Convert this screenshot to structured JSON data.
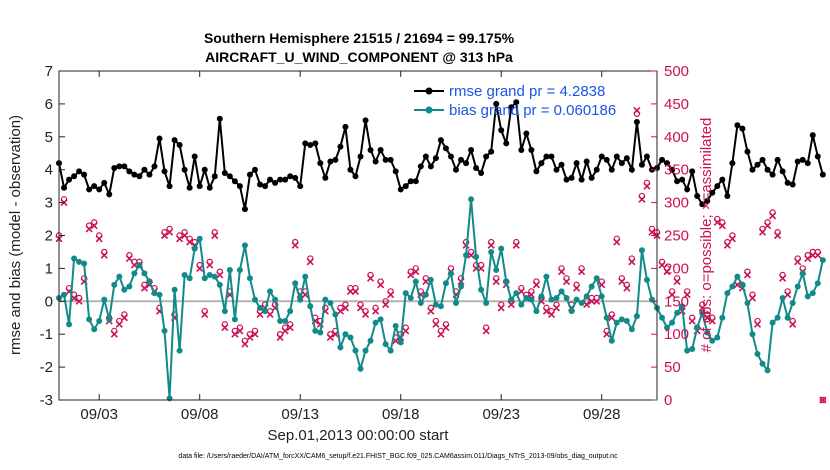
{
  "chart_data": {
    "type": "line",
    "title_line1": "Southern Hemisphere 21515 / 21694 = 99.175%",
    "title_line2": "AIRCRAFT_U_WIND_COMPONENT @ 313 hPa",
    "xlabel": "Sep.01,2013 00:00:00 start",
    "ylabel": "rmse and bias (model - observation)",
    "ylabel_right": "# of obs: o=possible; ×=assimilated",
    "ylim": [
      -3,
      7
    ],
    "ylim_right": [
      0,
      500
    ],
    "xlim": [
      1.0,
      30.75
    ],
    "x_ticks": [
      3,
      8,
      13,
      18,
      23,
      28
    ],
    "x_tick_labels": [
      "09/03",
      "09/08",
      "09/13",
      "09/18",
      "09/23",
      "09/28"
    ],
    "y_ticks": [
      -3,
      -2,
      -1,
      0,
      1,
      2,
      3,
      4,
      5,
      6,
      7
    ],
    "y_ticks_right": [
      0,
      50,
      100,
      150,
      200,
      250,
      300,
      350,
      400,
      450,
      500
    ],
    "legend": {
      "rmse_label": "rmse grand pr = 4.2838",
      "bias_label": "bias grand pr = 0.060186",
      "placement": "top-right"
    },
    "colors": {
      "rmse": "#000000",
      "bias": "#138a8a",
      "obs": "#cc1155",
      "zero": "#b4b4b4",
      "legend_text": "#1a55e6"
    },
    "x_step": 0.25,
    "x_start": 1.0,
    "rmse": [
      4.2,
      3.45,
      3.7,
      3.8,
      3.95,
      3.85,
      3.4,
      3.5,
      3.4,
      3.6,
      3.25,
      4.05,
      4.1,
      4.1,
      3.95,
      3.85,
      3.8,
      4.0,
      3.85,
      4.1,
      4.95,
      3.95,
      3.5,
      4.9,
      4.75,
      4.0,
      3.45,
      4.4,
      3.5,
      4.0,
      3.45,
      3.8,
      5.55,
      3.9,
      3.8,
      3.65,
      3.5,
      2.8,
      3.85,
      4.0,
      3.55,
      3.5,
      3.7,
      3.6,
      3.7,
      3.7,
      3.8,
      3.75,
      3.5,
      4.8,
      4.75,
      4.8,
      4.2,
      3.75,
      4.25,
      4.3,
      4.7,
      5.3,
      4.0,
      3.8,
      4.4,
      5.5,
      4.6,
      4.25,
      4.6,
      4.3,
      4.3,
      3.95,
      3.4,
      3.5,
      3.65,
      3.65,
      4.1,
      4.4,
      4.1,
      4.35,
      4.9,
      4.65,
      4.4,
      4.0,
      4.3,
      4.2,
      4.6,
      4.05,
      3.9,
      4.4,
      4.55,
      6.0,
      5.2,
      4.8,
      5.9,
      6.05,
      4.6,
      5.1,
      4.6,
      3.95,
      4.2,
      4.4,
      4.4,
      4.0,
      4.15,
      3.7,
      3.75,
      4.2,
      3.7,
      4.25,
      3.75,
      4.0,
      4.4,
      4.3,
      4.0,
      4.4,
      4.2,
      4.35,
      4.0,
      5.45,
      4.15,
      4.4,
      4.0,
      4.05,
      4.3,
      4.2,
      4.0,
      3.65,
      3.7,
      3.4,
      3.95,
      3.2,
      2.95,
      3.05,
      3.3,
      3.5,
      3.7,
      3.2,
      4.2,
      5.35,
      5.25,
      4.55,
      4.0,
      4.15,
      4.3,
      4.0,
      3.85,
      4.3,
      3.95,
      3.6,
      3.55,
      4.25,
      4.3,
      4.2,
      5.05,
      4.4,
      3.85
    ],
    "bias": [
      0.1,
      0.2,
      -0.7,
      1.3,
      1.2,
      1.15,
      -0.55,
      -0.85,
      -0.6,
      0.05,
      -0.55,
      0.5,
      0.75,
      0.35,
      0.45,
      0.85,
      1.1,
      0.85,
      0.6,
      0.25,
      0.2,
      -0.9,
      -2.95,
      0.35,
      -1.5,
      0.8,
      0.7,
      1.6,
      1.9,
      0.7,
      0.8,
      0.75,
      0.5,
      -0.3,
      0.95,
      -0.55,
      0.95,
      1.7,
      0.7,
      0.05,
      -0.2,
      -0.3,
      0.3,
      0.05,
      -0.6,
      -0.6,
      -0.3,
      0.55,
      0.05,
      0.75,
      -0.15,
      -0.9,
      -0.95,
      0.05,
      -0.05,
      -0.4,
      -1.4,
      -1.0,
      -1.1,
      -1.5,
      -2.05,
      -1.5,
      -1.2,
      -0.65,
      -0.55,
      -1.3,
      -1.5,
      -0.75,
      -1.25,
      0.25,
      0.1,
      0.6,
      -0.05,
      0.2,
      0.65,
      -0.1,
      -0.15,
      0.55,
      0.85,
      -0.05,
      0.45,
      1.4,
      3.1,
      1.35,
      0.35,
      -0.05,
      1.5,
      0.95,
      1.6,
      0.6,
      0.05,
      0.25,
      -0.1,
      0.1,
      0.05,
      -0.3,
      0.15,
      0.75,
      0.05,
      0.1,
      0.3,
      0.1,
      -0.3,
      0.05,
      -0.05,
      0.15,
      0.45,
      0.7,
      0.15,
      -0.5,
      -1.2,
      -0.65,
      -0.55,
      -0.6,
      -0.85,
      -0.45,
      1.55,
      0.65,
      0.05,
      -0.2,
      -0.5,
      -0.8,
      -0.65,
      -0.35,
      -0.15,
      -1.5,
      -1.45,
      -0.8,
      -0.35,
      -0.95,
      -1.2,
      -1.1,
      -0.5,
      0.25,
      0.45,
      0.75,
      0.5,
      -0.05,
      -1.0,
      -1.6,
      -1.9,
      -2.1,
      -0.65,
      -0.5,
      0.1,
      -0.5,
      -0.05,
      0.45,
      0.85,
      0.15,
      0.25,
      0.55,
      1.25
    ],
    "obs_possible": [
      250,
      305,
      170,
      160,
      155,
      185,
      265,
      270,
      250,
      225,
      125,
      105,
      120,
      130,
      220,
      210,
      210,
      175,
      180,
      170,
      140,
      255,
      260,
      130,
      250,
      255,
      245,
      240,
      205,
      135,
      210,
      255,
      195,
      115,
      165,
      105,
      110,
      90,
      100,
      105,
      135,
      145,
      135,
      145,
      100,
      110,
      115,
      240,
      165,
      165,
      215,
      125,
      120,
      140,
      100,
      105,
      140,
      145,
      170,
      170,
      145,
      135,
      190,
      140,
      180,
      150,
      165,
      95,
      100,
      110,
      195,
      200,
      165,
      185,
      140,
      120,
      105,
      115,
      200,
      165,
      185,
      240,
      225,
      205,
      205,
      110,
      240,
      185,
      145,
      180,
      150,
      240,
      170,
      160,
      165,
      180,
      155,
      140,
      135,
      145,
      200,
      185,
      145,
      175,
      200,
      150,
      155,
      155,
      180,
      105,
      130,
      245,
      185,
      175,
      215,
      435,
      310,
      330,
      260,
      255,
      210,
      200,
      165,
      185,
      140,
      165,
      125,
      110,
      145,
      130,
      125,
      275,
      270,
      240,
      250,
      180,
      175,
      195,
      160,
      120,
      260,
      270,
      285,
      255,
      190,
      165,
      120,
      215,
      200,
      220,
      225,
      225,
      0
    ],
    "obs_assim": [
      245,
      300,
      165,
      155,
      150,
      180,
      260,
      265,
      245,
      220,
      120,
      100,
      115,
      125,
      215,
      205,
      205,
      170,
      175,
      165,
      135,
      250,
      255,
      125,
      245,
      250,
      240,
      235,
      200,
      130,
      205,
      250,
      190,
      110,
      160,
      100,
      105,
      85,
      95,
      100,
      130,
      140,
      130,
      140,
      95,
      105,
      110,
      235,
      160,
      160,
      210,
      120,
      115,
      135,
      95,
      100,
      135,
      140,
      165,
      165,
      140,
      130,
      185,
      135,
      175,
      145,
      160,
      90,
      95,
      105,
      190,
      195,
      160,
      180,
      135,
      115,
      100,
      110,
      195,
      160,
      180,
      235,
      220,
      200,
      200,
      105,
      235,
      180,
      140,
      175,
      145,
      235,
      165,
      155,
      160,
      175,
      150,
      135,
      130,
      140,
      195,
      180,
      140,
      170,
      195,
      145,
      150,
      150,
      175,
      100,
      125,
      240,
      180,
      170,
      210,
      440,
      305,
      325,
      255,
      250,
      205,
      195,
      160,
      180,
      135,
      160,
      120,
      105,
      140,
      125,
      120,
      270,
      265,
      235,
      245,
      175,
      170,
      190,
      155,
      115,
      255,
      265,
      280,
      250,
      185,
      160,
      115,
      210,
      195,
      215,
      220,
      220,
      0
    ]
  },
  "footer": {
    "data_file": "data file: /Users/raeder/DAI/ATM_forcXX/CAM6_setup/f.e21.FHIST_BGC.f09_025.CAM6assim.011/Diags_NTrS_2013-09/obs_diag_output.nc"
  }
}
